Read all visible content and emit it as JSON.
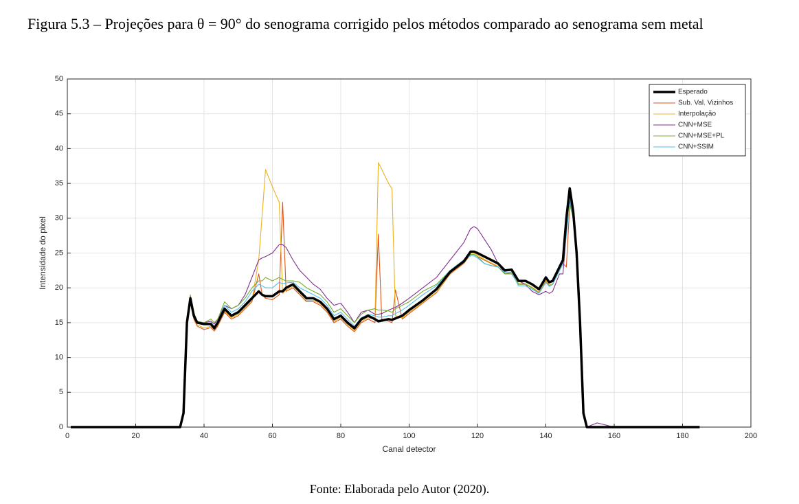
{
  "caption": "Figura 5.3 – Projeções para θ = 90° do senograma corrigido pelos métodos comparado ao senograma sem metal",
  "chart_data": {
    "type": "line",
    "xlabel": "Canal detector",
    "ylabel": "Intensidade do pixel",
    "xlim": [
      0,
      200
    ],
    "xticks": [
      0,
      20,
      40,
      60,
      80,
      100,
      120,
      140,
      160,
      180,
      200
    ],
    "ylim": [
      0,
      50
    ],
    "yticks": [
      0,
      5,
      10,
      15,
      20,
      25,
      30,
      35,
      40,
      45,
      50
    ],
    "grid": true,
    "legend": "upper right",
    "x": [
      1,
      20,
      32,
      33,
      34,
      35,
      36,
      37,
      38,
      40,
      42,
      43,
      44,
      46,
      48,
      50,
      52,
      54,
      56,
      57,
      58,
      60,
      62,
      63,
      64,
      66,
      68,
      70,
      72,
      74,
      76,
      78,
      80,
      82,
      84,
      86,
      88,
      90,
      91,
      92,
      94,
      95,
      96,
      98,
      100,
      104,
      108,
      112,
      116,
      118,
      119,
      120,
      122,
      124,
      126,
      128,
      130,
      132,
      134,
      136,
      138,
      140,
      141,
      142,
      144,
      145,
      146,
      147,
      148,
      149,
      150,
      151,
      152,
      155,
      160,
      185
    ],
    "series": [
      {
        "name": "Esperado",
        "color": "#000000",
        "values": [
          0,
          0,
          0,
          0,
          2,
          15,
          18.5,
          16,
          15,
          14.8,
          14.8,
          14.2,
          15,
          17,
          16,
          16.5,
          17.5,
          18.5,
          19.5,
          19,
          18.8,
          18.8,
          19.5,
          19.5,
          20,
          20.5,
          19.5,
          18.5,
          18.5,
          18,
          17,
          15.5,
          16,
          15,
          14.2,
          15.5,
          16,
          15.5,
          15.2,
          15.3,
          15.5,
          15.4,
          15.6,
          16,
          16.8,
          18.2,
          19.8,
          22.3,
          23.8,
          25.2,
          25.2,
          25,
          24.5,
          24,
          23.5,
          22.5,
          22.6,
          21,
          21,
          20.5,
          19.8,
          21.5,
          20.8,
          21,
          23,
          24,
          30,
          34.3,
          31,
          25,
          15,
          2,
          0,
          0,
          0,
          0
        ]
      },
      {
        "name": "Sub. Val. Vizinhos",
        "color": "#d95319",
        "values": [
          0,
          0,
          0,
          0,
          2,
          14.5,
          18,
          15.5,
          14.5,
          14,
          14.3,
          13.8,
          14.5,
          16.5,
          15.5,
          16,
          17,
          18,
          22,
          19,
          18.5,
          18.3,
          19,
          32.3,
          19.5,
          20,
          19,
          18,
          18,
          17.5,
          16.5,
          15,
          15.5,
          14.5,
          13.7,
          15,
          15.5,
          15,
          27.7,
          15.5,
          15.2,
          15,
          19.7,
          15.5,
          16.3,
          17.8,
          19.3,
          22,
          23.5,
          24.8,
          24.8,
          24.5,
          24,
          23.5,
          23,
          22,
          22.2,
          20.5,
          20.5,
          20,
          19.3,
          21,
          20.3,
          20.5,
          22.5,
          23.5,
          23,
          32,
          30.5,
          24.5,
          14.5,
          2,
          0,
          0,
          0,
          0
        ]
      },
      {
        "name": "Interpolação",
        "color": "#edb120",
        "values": [
          0,
          0,
          0,
          0,
          2,
          14.8,
          18.2,
          15.7,
          14.7,
          14.2,
          14.5,
          14,
          14.7,
          16.7,
          15.7,
          16.2,
          17.2,
          18.2,
          24,
          30.5,
          37,
          34.5,
          32.3,
          19.2,
          19.7,
          20.2,
          19.2,
          18.2,
          18.2,
          17.7,
          16.7,
          15.2,
          15.7,
          14.7,
          13.9,
          15.2,
          15.7,
          15.5,
          38,
          37,
          35,
          34.2,
          16,
          15.7,
          16.5,
          17.9,
          19.4,
          22.1,
          23.6,
          25,
          25,
          24.7,
          24.1,
          23.6,
          23.1,
          22.1,
          22.3,
          20.6,
          20.6,
          20.1,
          19.4,
          21.1,
          20.4,
          20.6,
          22.6,
          23.6,
          28,
          33,
          30.5,
          24.5,
          14.5,
          2,
          0,
          0,
          0,
          0
        ]
      },
      {
        "name": "CNN+MSE",
        "color": "#7e2f8e",
        "values": [
          0,
          0,
          0,
          0,
          2,
          15.5,
          18,
          16,
          15,
          15,
          15.2,
          14.8,
          15.5,
          17.5,
          17,
          17.5,
          19,
          21.5,
          24,
          24.3,
          24.5,
          25,
          26.2,
          26.2,
          25.8,
          24,
          22.5,
          21.5,
          20.5,
          19.8,
          18.5,
          17.5,
          17.8,
          16.5,
          15,
          16.5,
          16.8,
          16.2,
          16.2,
          16.3,
          16.8,
          17,
          17.2,
          17.8,
          18.5,
          20,
          21.5,
          24,
          26.5,
          28.5,
          28.8,
          28.5,
          27,
          25.5,
          23.5,
          22,
          22,
          21,
          20.5,
          19.5,
          19,
          19.5,
          19.2,
          19.5,
          22,
          22,
          28,
          32.5,
          30,
          24,
          14,
          2,
          0,
          0.6,
          0,
          0
        ]
      },
      {
        "name": "CNN+MSE+PL",
        "color": "#77ac30",
        "values": [
          0,
          0,
          0,
          0,
          2,
          15.5,
          19,
          16.5,
          15.2,
          15,
          15.5,
          15,
          15.5,
          18,
          17,
          17.5,
          18.5,
          20,
          21,
          21,
          21.5,
          21,
          21.5,
          21.2,
          21,
          21,
          20.8,
          20,
          19.5,
          19,
          18,
          16.5,
          17,
          16,
          15,
          16.2,
          16.8,
          17,
          16.8,
          16.8,
          16.7,
          16.5,
          17,
          17.5,
          18,
          19.5,
          20.5,
          22.5,
          24,
          24.8,
          24.8,
          24.5,
          23.5,
          23.2,
          23,
          22,
          22,
          20.5,
          20.5,
          20,
          19.2,
          20.8,
          20.3,
          20.5,
          22.5,
          23.5,
          28,
          32,
          30,
          24,
          14,
          2,
          0,
          0,
          0,
          0
        ]
      },
      {
        "name": "CNN+SSIM",
        "color": "#4dbeee",
        "values": [
          0,
          0,
          0,
          0,
          2,
          15,
          18,
          16,
          15,
          14.8,
          15,
          14.5,
          15.2,
          17.5,
          16.5,
          17,
          18,
          19.5,
          20.5,
          20.3,
          20,
          20,
          20.8,
          20.6,
          20.7,
          20.8,
          20,
          19.5,
          19,
          18.5,
          17.5,
          16,
          16.5,
          15.5,
          14.5,
          15.7,
          16.2,
          16,
          15.8,
          15.8,
          16,
          16,
          16.3,
          16.8,
          17.5,
          19,
          20.3,
          22.5,
          24,
          24.6,
          24.6,
          24.3,
          23.5,
          23.2,
          23,
          22.2,
          22.2,
          20.3,
          20.3,
          19.8,
          19.2,
          20.8,
          20.2,
          20.5,
          22.5,
          23.5,
          27.5,
          33,
          30,
          24.5,
          14.5,
          2,
          0,
          0,
          0,
          0
        ]
      }
    ]
  },
  "source": "Fonte: Elaborada pelo Autor (2020)."
}
